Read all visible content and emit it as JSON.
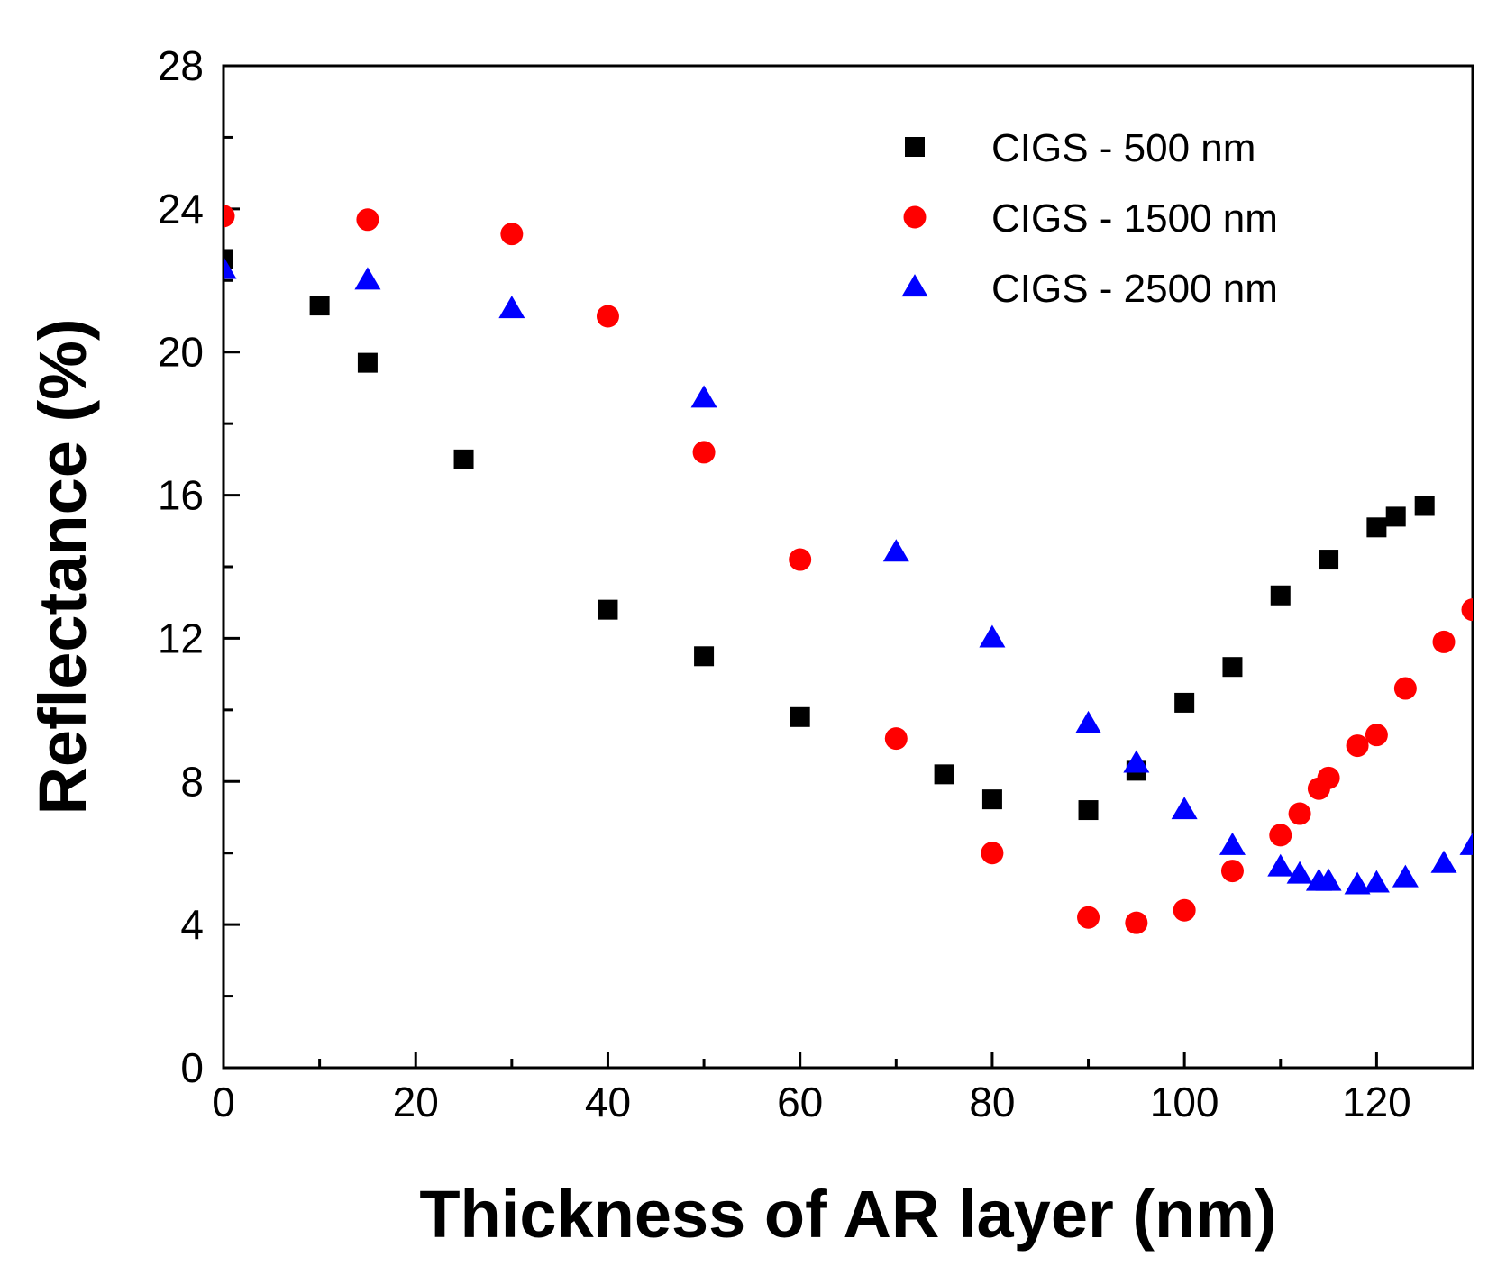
{
  "chart_data": {
    "type": "scatter",
    "title": "",
    "xlabel": "Thickness of AR layer (nm)",
    "ylabel": "Reflectance (%)",
    "xlim": [
      0,
      130
    ],
    "ylim": [
      0,
      28
    ],
    "xticks": [
      0,
      20,
      40,
      60,
      80,
      100,
      120
    ],
    "yticks": [
      0,
      4,
      8,
      12,
      16,
      20,
      24,
      28
    ],
    "legend_position": "top-right",
    "series": [
      {
        "name": "CIGS - 500 nm",
        "marker": "square",
        "color": "#000000",
        "x": [
          0,
          10,
          15,
          25,
          40,
          50,
          60,
          75,
          80,
          90,
          95,
          100,
          105,
          110,
          115,
          120,
          122,
          125
        ],
        "y": [
          22.6,
          21.3,
          19.7,
          17.0,
          12.8,
          11.5,
          9.8,
          8.2,
          7.5,
          7.2,
          8.3,
          10.2,
          11.2,
          13.2,
          14.2,
          15.1,
          15.4,
          15.7
        ]
      },
      {
        "name": "CIGS - 1500 nm",
        "marker": "circle",
        "color": "#ff0000",
        "x": [
          0,
          15,
          30,
          40,
          50,
          60,
          70,
          80,
          90,
          95,
          100,
          105,
          110,
          112,
          114,
          115,
          118,
          120,
          123,
          127,
          130
        ],
        "y": [
          23.8,
          23.7,
          23.3,
          21.0,
          17.2,
          14.2,
          9.2,
          6.0,
          4.2,
          4.05,
          4.4,
          5.5,
          6.5,
          7.1,
          7.8,
          8.1,
          9.0,
          9.3,
          10.6,
          11.9,
          12.8
        ]
      },
      {
        "name": "CIGS - 2500 nm",
        "marker": "triangle",
        "color": "#0000ff",
        "x": [
          0,
          15,
          30,
          50,
          70,
          80,
          90,
          95,
          100,
          105,
          110,
          112,
          114,
          115,
          118,
          120,
          123,
          127,
          130
        ],
        "y": [
          22.3,
          22.0,
          21.2,
          18.7,
          14.4,
          12.0,
          9.6,
          8.5,
          7.2,
          6.2,
          5.6,
          5.4,
          5.2,
          5.2,
          5.1,
          5.15,
          5.3,
          5.7,
          6.2
        ]
      }
    ]
  }
}
